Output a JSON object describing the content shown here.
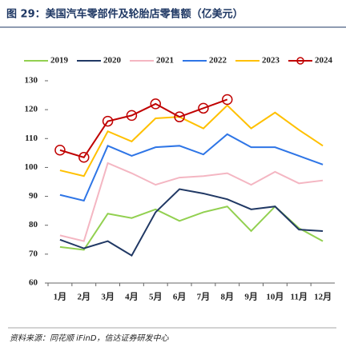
{
  "chart_data": {
    "type": "line",
    "title": "图 29：美国汽车零部件及轮胎店零售额（亿美元）",
    "source": "资料来源：同花顺 iFinD，信达证券研发中心",
    "categories": [
      "1月",
      "2月",
      "3月",
      "4月",
      "5月",
      "6月",
      "7月",
      "8月",
      "9月",
      "10月",
      "11月",
      "12月"
    ],
    "series": [
      {
        "name": "2019",
        "color": "#92d050",
        "values": [
          72.5,
          71.5,
          84,
          82.5,
          85.5,
          81.5,
          84.5,
          86.5,
          78,
          86.5,
          79,
          74.5
        ]
      },
      {
        "name": "2020",
        "color": "#203864",
        "values": [
          75,
          72,
          74.5,
          69.5,
          84.5,
          92.5,
          91,
          89,
          85.5,
          86.5,
          78.5,
          78
        ]
      },
      {
        "name": "2021",
        "color": "#f4b6c2",
        "values": [
          76.5,
          74.5,
          101.5,
          98,
          94,
          96.5,
          97,
          98,
          94,
          98.5,
          94.5,
          95.5
        ]
      },
      {
        "name": "2022",
        "color": "#2e75e6",
        "values": [
          90.5,
          88.5,
          107.5,
          104,
          107,
          107.5,
          104.5,
          111.5,
          107,
          107,
          104,
          101
        ]
      },
      {
        "name": "2023",
        "color": "#ffc000",
        "values": [
          99,
          97,
          112.5,
          109,
          117,
          117.5,
          113.5,
          121.5,
          113.5,
          119,
          113,
          107.5
        ]
      },
      {
        "name": "2024",
        "color": "#c00000",
        "marker": "circle",
        "values": [
          106,
          103.5,
          116,
          118,
          122,
          117.5,
          120.5,
          123.5,
          null,
          null,
          null,
          null
        ]
      }
    ],
    "ylim": [
      60,
      130
    ],
    "yticks": [
      60,
      70,
      80,
      90,
      100,
      110,
      120,
      130
    ],
    "grid": false,
    "legend": "top"
  }
}
